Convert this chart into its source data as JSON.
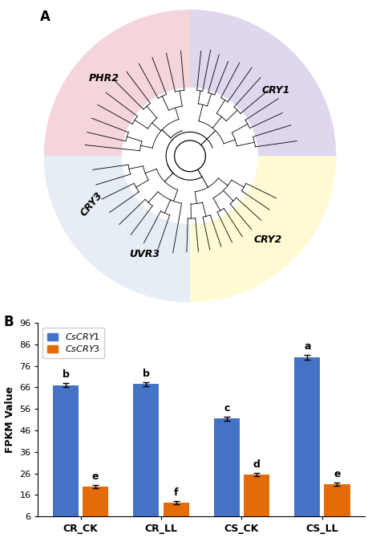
{
  "bar_categories": [
    "CR_CK",
    "CR_LL",
    "CS_CK",
    "CS_LL"
  ],
  "cry1_values": [
    67.0,
    67.5,
    51.5,
    80.0
  ],
  "cry3_values": [
    20.0,
    12.5,
    25.5,
    21.0
  ],
  "cry1_errors": [
    1.0,
    0.8,
    1.0,
    1.2
  ],
  "cry3_errors": [
    0.8,
    0.7,
    0.8,
    0.8
  ],
  "cry1_color": "#4472C4",
  "cry3_color": "#E36C09",
  "ylabel": "FPKM Value",
  "yticks": [
    6,
    16,
    26,
    36,
    46,
    56,
    66,
    76,
    86,
    96
  ],
  "ylim": [
    6,
    96
  ],
  "cry1_label": "CsCRY1",
  "cry3_label": "CsCRY3",
  "cry1_letters": [
    "b",
    "b",
    "c",
    "a"
  ],
  "cry3_letters": [
    "e",
    "f",
    "d",
    "e"
  ],
  "panel_a_label": "A",
  "panel_b_label": "B",
  "wedge_cry1_color": "#D4C5E8",
  "wedge_cry2_color": "#FFFACD",
  "wedge_phr2_color": "#F2C4CE",
  "wedge_uvr3_color": "#C8D8E8",
  "clade_labels": [
    "CRY1",
    "PHR2",
    "CRY2",
    "UVR3",
    "CRY3"
  ],
  "clade_x": [
    0.72,
    -0.72,
    0.65,
    -0.38,
    -0.82
  ],
  "clade_y": [
    0.55,
    0.65,
    -0.7,
    -0.82,
    -0.4
  ],
  "clade_rot": [
    0,
    0,
    0,
    0,
    50
  ]
}
